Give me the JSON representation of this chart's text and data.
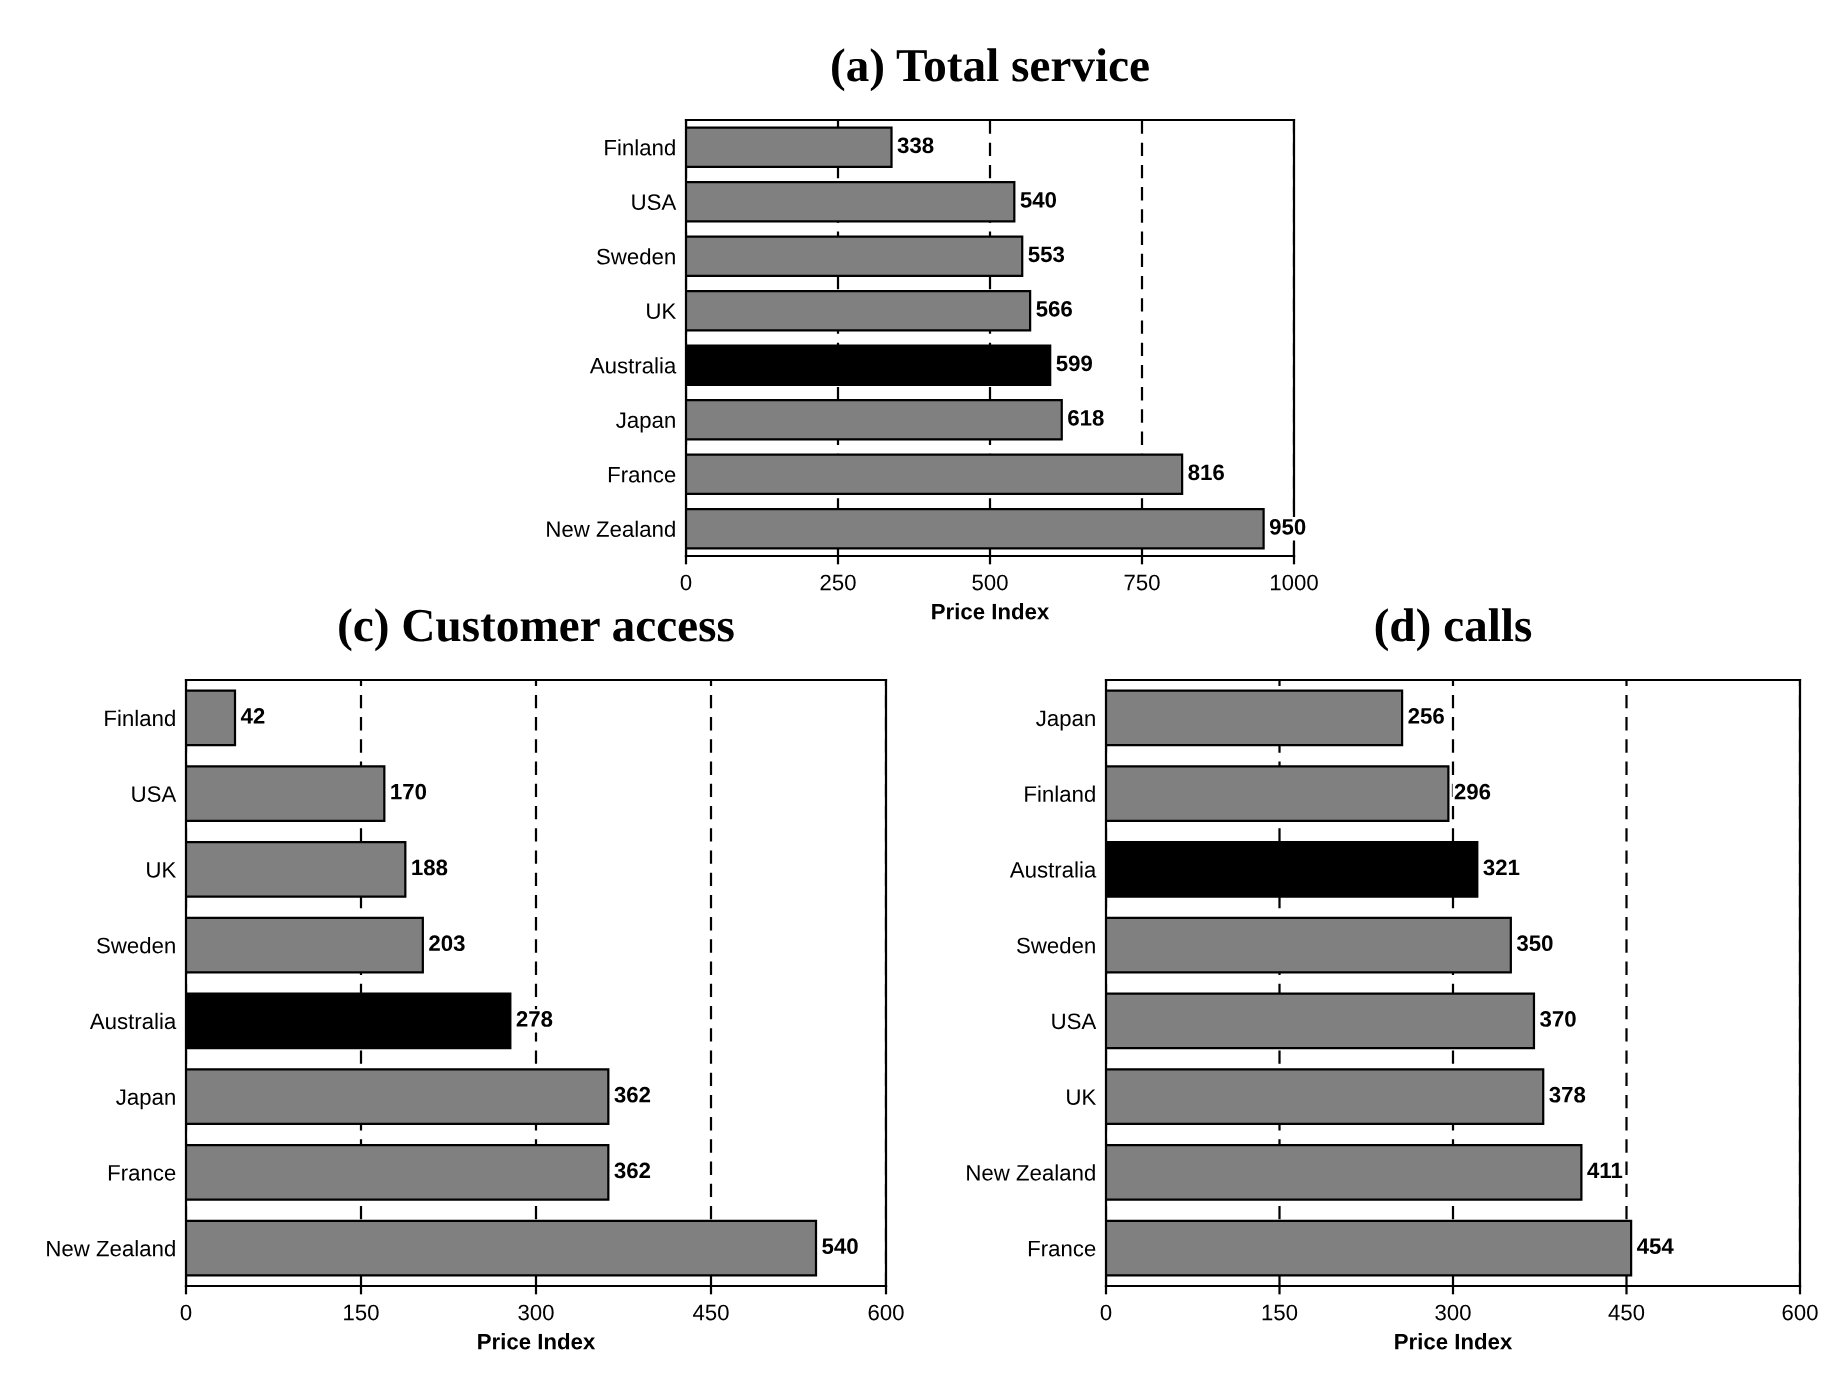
{
  "chart_data": [
    {
      "type": "bar",
      "orientation": "horizontal",
      "title": "(a) Total service",
      "xlabel": "Price Index",
      "categories": [
        "Finland",
        "USA",
        "Sweden",
        "UK",
        "Australia",
        "Japan",
        "France",
        "New Zealand"
      ],
      "values": [
        338,
        540,
        553,
        566,
        599,
        618,
        816,
        950
      ],
      "colors": [
        "#808080",
        "#808080",
        "#808080",
        "#808080",
        "#000000",
        "#808080",
        "#808080",
        "#808080"
      ],
      "xlim": [
        0,
        1000
      ],
      "xticks": [
        0,
        250,
        500,
        750,
        1000
      ],
      "grid": "x",
      "data_labels": true
    },
    {
      "type": "bar",
      "orientation": "horizontal",
      "title": "(c) Customer access",
      "xlabel": "Price Index",
      "categories": [
        "Finland",
        "USA",
        "UK",
        "Sweden",
        "Australia",
        "Japan",
        "France",
        "New Zealand"
      ],
      "values": [
        42,
        170,
        188,
        203,
        278,
        362,
        362,
        540
      ],
      "colors": [
        "#808080",
        "#808080",
        "#808080",
        "#808080",
        "#000000",
        "#808080",
        "#808080",
        "#808080"
      ],
      "xlim": [
        0,
        600
      ],
      "xticks": [
        0,
        150,
        300,
        450,
        600
      ],
      "grid": "x",
      "data_labels": true
    },
    {
      "type": "bar",
      "orientation": "horizontal",
      "title": "(d) calls",
      "xlabel": "Price Index",
      "categories": [
        "Japan",
        "Finland",
        "Australia",
        "Sweden",
        "USA",
        "UK",
        "New Zealand",
        "France"
      ],
      "values": [
        256,
        296,
        321,
        350,
        370,
        378,
        411,
        454
      ],
      "colors": [
        "#808080",
        "#808080",
        "#000000",
        "#808080",
        "#808080",
        "#808080",
        "#808080",
        "#808080"
      ],
      "xlim": [
        0,
        600
      ],
      "xticks": [
        0,
        150,
        300,
        450,
        600
      ],
      "grid": "x",
      "data_labels": true
    }
  ]
}
